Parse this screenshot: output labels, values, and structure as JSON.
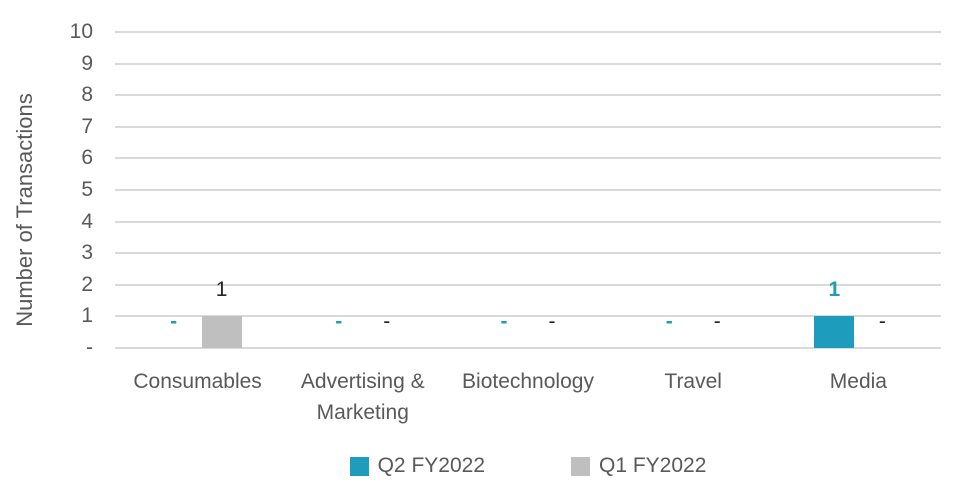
{
  "chart_data": {
    "type": "bar",
    "title": "",
    "xlabel": "",
    "ylabel": "Number of Transactions",
    "ylim": [
      0,
      10
    ],
    "grid": true,
    "legend_position": "bottom",
    "ytick_labels_top_to_bottom": [
      "10",
      "9",
      "8",
      "7",
      "6",
      "5",
      "4",
      "3",
      "2",
      "1",
      "-"
    ],
    "categories": [
      "Consumables",
      "Advertising & Marketing",
      "Biotechnology",
      "Travel",
      "Media"
    ],
    "series": [
      {
        "name": "Q2 FY2022",
        "values": [
          0,
          0,
          0,
          0,
          1
        ],
        "data_labels": [
          "-",
          "-",
          "-",
          "-",
          "1"
        ],
        "color": "#1E9CBC",
        "label_color": "#1E9CBC",
        "label_bold": true
      },
      {
        "name": "Q1 FY2022",
        "values": [
          1,
          0,
          0,
          0,
          0
        ],
        "data_labels": [
          "1",
          "-",
          "-",
          "-",
          "-"
        ],
        "color": "#BFBFBF",
        "label_color": "#262626",
        "label_bold": false
      }
    ]
  },
  "colors": {
    "gridline": "#d9d9d9",
    "axis_text": "#595959"
  }
}
